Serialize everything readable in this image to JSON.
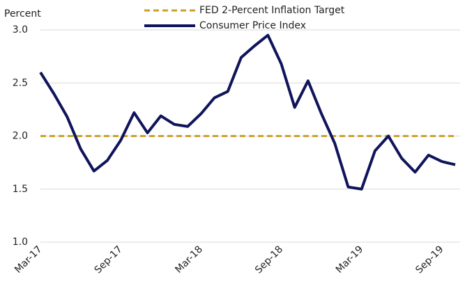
{
  "chart_data": {
    "type": "line",
    "y_label": "Percent",
    "categories": [
      "Mar-17",
      null,
      null,
      null,
      null,
      null,
      "Sep-17",
      null,
      null,
      null,
      null,
      null,
      "Mar-18",
      null,
      null,
      null,
      null,
      null,
      "Sep-18",
      null,
      null,
      null,
      null,
      null,
      "Mar-19",
      null,
      null,
      null,
      null,
      null,
      "Sep-19",
      null
    ],
    "series": [
      {
        "name": "FED 2-Percent Inflation Target",
        "color": "#c9a227",
        "dashed": true,
        "values": [
          2.0,
          2.0,
          2.0,
          2.0,
          2.0,
          2.0,
          2.0,
          2.0,
          2.0,
          2.0,
          2.0,
          2.0,
          2.0,
          2.0,
          2.0,
          2.0,
          2.0,
          2.0,
          2.0,
          2.0,
          2.0,
          2.0,
          2.0,
          2.0,
          2.0,
          2.0,
          2.0,
          2.0,
          2.0,
          2.0,
          2.0,
          2.0
        ]
      },
      {
        "name": "Consumer Price Index",
        "color": "#10145a",
        "dashed": false,
        "values": [
          2.6,
          2.4,
          2.18,
          1.88,
          1.67,
          1.77,
          1.96,
          2.22,
          2.03,
          2.19,
          2.11,
          2.09,
          2.21,
          2.36,
          2.42,
          2.74,
          2.85,
          2.95,
          2.68,
          2.27,
          2.52,
          2.21,
          1.93,
          1.52,
          1.5,
          1.86,
          2.0,
          1.79,
          1.66,
          1.82,
          1.76,
          1.73
        ]
      }
    ],
    "ylim": [
      1.0,
      3.0
    ],
    "yticks": [
      {
        "value": 1.0,
        "label": "1.0"
      },
      {
        "value": 1.5,
        "label": "1.5"
      },
      {
        "value": 2.0,
        "label": "2.0"
      },
      {
        "value": 2.5,
        "label": "2.5"
      },
      {
        "value": 3.0,
        "label": "3.0"
      }
    ],
    "grid": true,
    "legend": "top"
  }
}
